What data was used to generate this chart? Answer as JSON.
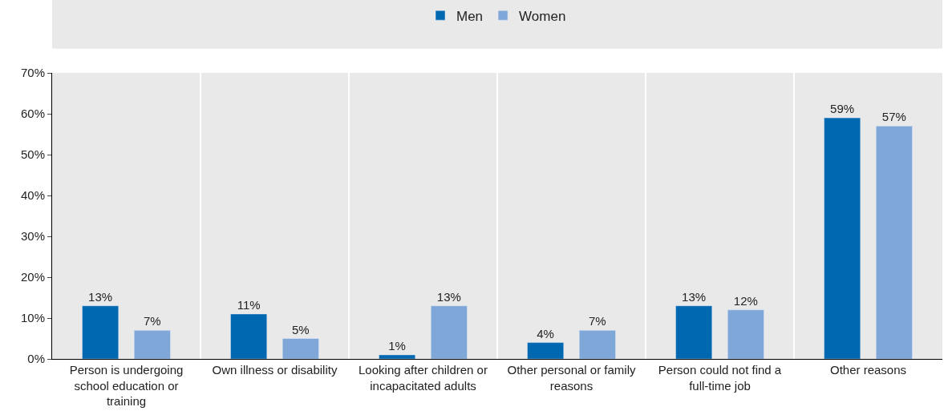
{
  "chart_data": {
    "type": "bar",
    "categories": [
      "Person is undergoing school education or training",
      "Own illness or disability",
      "Looking after children or incapacitated adults",
      "Other personal or family reasons",
      "Person could not find a full-time job",
      "Other reasons"
    ],
    "series": [
      {
        "name": "Men",
        "color": "#0067b1",
        "values": [
          13,
          11,
          1,
          4,
          13,
          59
        ],
        "value_labels": [
          "13%",
          "11%",
          "1%",
          "4%",
          "13%",
          "59%"
        ]
      },
      {
        "name": "Women",
        "color": "#7fa7d8",
        "values": [
          7,
          5,
          13,
          7,
          12,
          57
        ],
        "value_labels": [
          "7%",
          "5%",
          "13%",
          "7%",
          "12%",
          "57%"
        ]
      }
    ],
    "ylim": [
      0,
      70
    ],
    "yticks": [
      {
        "value": 0,
        "label": "0%"
      },
      {
        "value": 10,
        "label": "10%"
      },
      {
        "value": 20,
        "label": "20%"
      },
      {
        "value": 30,
        "label": "30%"
      },
      {
        "value": 40,
        "label": "40%"
      },
      {
        "value": 50,
        "label": "50%"
      },
      {
        "value": 60,
        "label": "60%"
      },
      {
        "value": 70,
        "label": "70%"
      }
    ],
    "grid": "x",
    "legend": "top"
  }
}
